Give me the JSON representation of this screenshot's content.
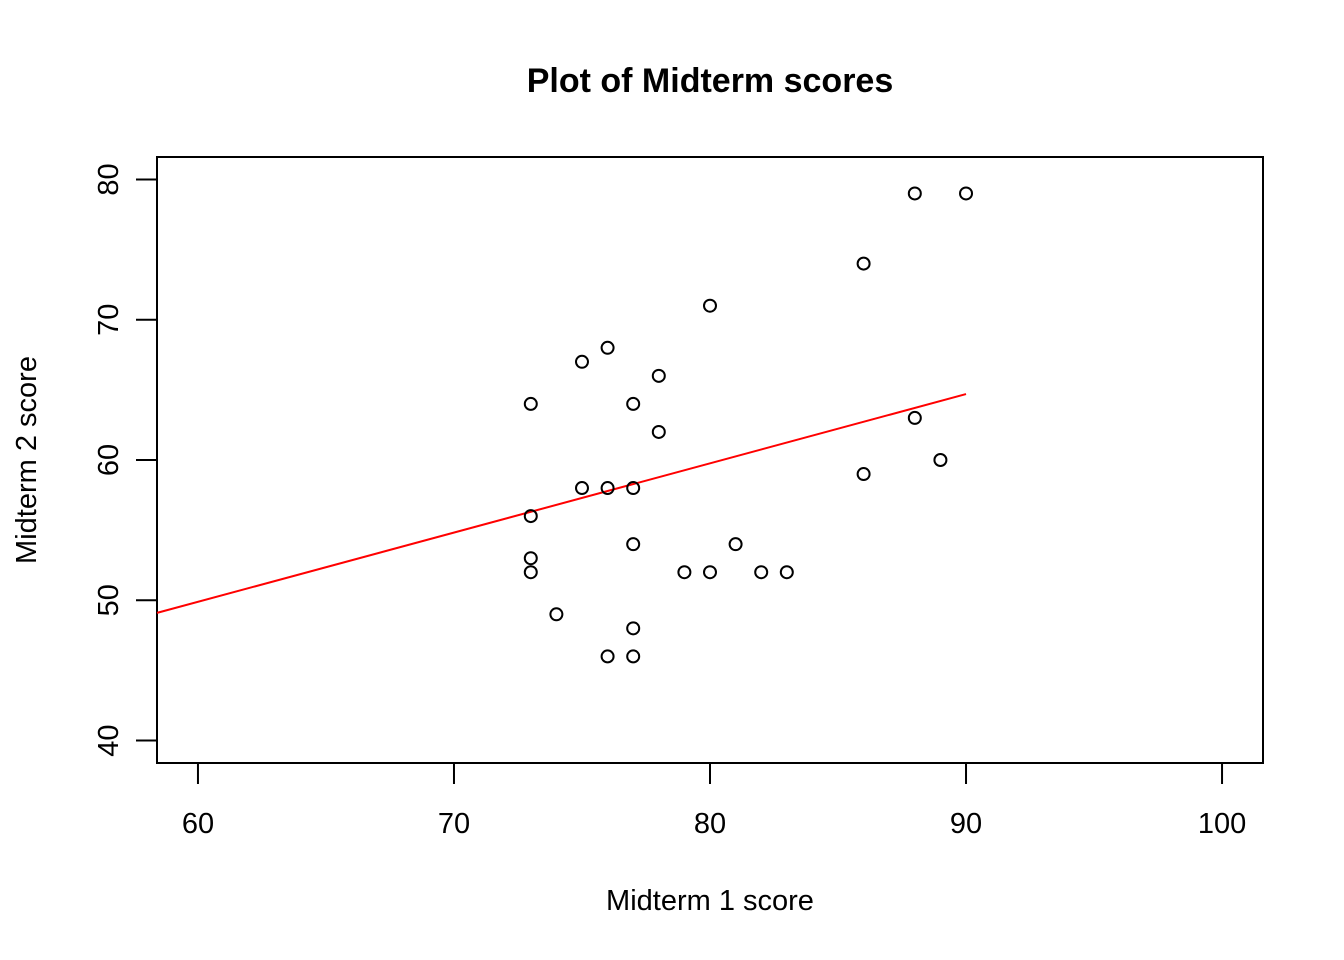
{
  "chart_data": {
    "type": "scatter",
    "title": "Plot of Midterm scores",
    "xlabel": "Midterm 1 score",
    "ylabel": "Midterm 2 score",
    "xlim": [
      58.4,
      101.6
    ],
    "ylim": [
      38.4,
      81.6
    ],
    "xticks": [
      60,
      70,
      80,
      90,
      100
    ],
    "yticks": [
      40,
      50,
      60,
      70,
      80
    ],
    "grid": false,
    "point_color": "#000000",
    "line_color": "#ff0000",
    "points": [
      {
        "x": 73,
        "y": 64
      },
      {
        "x": 73,
        "y": 56
      },
      {
        "x": 73,
        "y": 53
      },
      {
        "x": 73,
        "y": 52
      },
      {
        "x": 74,
        "y": 49
      },
      {
        "x": 75,
        "y": 67
      },
      {
        "x": 75,
        "y": 58
      },
      {
        "x": 76,
        "y": 68
      },
      {
        "x": 76,
        "y": 58
      },
      {
        "x": 76,
        "y": 46
      },
      {
        "x": 77,
        "y": 64
      },
      {
        "x": 77,
        "y": 58
      },
      {
        "x": 77,
        "y": 54
      },
      {
        "x": 77,
        "y": 48
      },
      {
        "x": 77,
        "y": 46
      },
      {
        "x": 78,
        "y": 66
      },
      {
        "x": 78,
        "y": 62
      },
      {
        "x": 79,
        "y": 52
      },
      {
        "x": 80,
        "y": 71
      },
      {
        "x": 80,
        "y": 52
      },
      {
        "x": 81,
        "y": 54
      },
      {
        "x": 82,
        "y": 52
      },
      {
        "x": 83,
        "y": 52
      },
      {
        "x": 86,
        "y": 74
      },
      {
        "x": 86,
        "y": 59
      },
      {
        "x": 88,
        "y": 79
      },
      {
        "x": 88,
        "y": 63
      },
      {
        "x": 89,
        "y": 60
      },
      {
        "x": 90,
        "y": 79
      }
    ],
    "fit_line": {
      "x": [
        58.4,
        90
      ],
      "y": [
        49.1,
        64.7
      ]
    }
  }
}
